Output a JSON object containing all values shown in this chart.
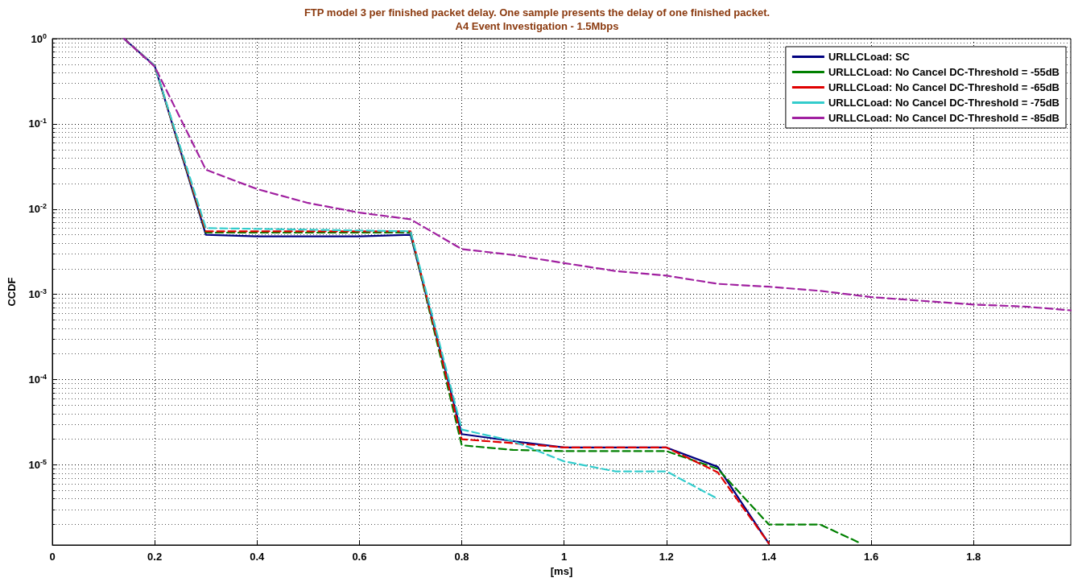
{
  "chart_data": {
    "type": "line",
    "title": "FTP model 3 per finished packet delay. One sample presents the delay of one finished packet.",
    "subtitle": "A4 Event Investigation - 1.5Mbps",
    "xlabel": "[ms]",
    "ylabel": "CCDF",
    "log": "y",
    "grid": true,
    "legend": "top right",
    "marker": "none",
    "xlim": [
      0,
      1.99
    ],
    "xticks": [
      0,
      0.2,
      0.4,
      0.6,
      0.8,
      1,
      1.2,
      1.4,
      1.6,
      1.8
    ],
    "ylim": [
      1.15e-06,
      1
    ],
    "yticks": [
      {
        "value": 1,
        "label": "10$^{0}$"
      },
      {
        "value": 0.1,
        "label": "10$^{-1}$"
      },
      {
        "value": 0.01,
        "label": "10$^{-2}$"
      },
      {
        "value": 0.001,
        "label": "10$^{-3}$"
      },
      {
        "value": 0.0001,
        "label": "10$^{-4}$"
      },
      {
        "value": 1e-05,
        "label": "10$^{-5}$"
      }
    ],
    "series": [
      {
        "name": "URLLCLoad: SC",
        "color": "#000080",
        "line_style": "solid",
        "x": [
          0.14,
          0.2,
          0.3,
          0.4,
          0.6,
          0.7,
          0.8,
          0.9,
          1.0,
          1.2,
          1.3,
          1.4
        ],
        "values": [
          1,
          0.48,
          0.005,
          0.0048,
          0.0048,
          0.005,
          2.3e-05,
          1.9e-05,
          1.6e-05,
          1.6e-05,
          9.5e-06,
          1.2e-06
        ]
      },
      {
        "name": "URLLCLoad: No Cancel DC-Threshold = -55dB",
        "color": "#008000",
        "line_style": "dashed",
        "x": [
          0.14,
          0.2,
          0.3,
          0.7,
          0.8,
          0.9,
          1.0,
          1.2,
          1.3,
          1.4,
          1.5,
          1.58
        ],
        "values": [
          1,
          0.48,
          0.0053,
          0.0053,
          1.7e-05,
          1.5e-05,
          1.45e-05,
          1.45e-05,
          9e-06,
          2e-06,
          2e-06,
          1.2e-06
        ]
      },
      {
        "name": "URLLCLoad: No Cancel DC-Threshold = -65dB",
        "color": "#e00000",
        "line_style": "dashed",
        "x": [
          0.14,
          0.2,
          0.3,
          0.7,
          0.8,
          0.9,
          1.0,
          1.2,
          1.3,
          1.4
        ],
        "values": [
          1,
          0.48,
          0.0055,
          0.0055,
          2e-05,
          1.8e-05,
          1.6e-05,
          1.6e-05,
          8.2e-06,
          1.2e-06
        ]
      },
      {
        "name": "URLLCLoad: No Cancel DC-Threshold = -75dB",
        "color": "#33cccc",
        "line_style": "dashed",
        "x": [
          0.14,
          0.2,
          0.3,
          0.7,
          0.8,
          0.9,
          1.0,
          1.1,
          1.2,
          1.3
        ],
        "values": [
          1,
          0.48,
          0.006,
          0.0055,
          2.6e-05,
          1.9e-05,
          1.1e-05,
          8.4e-06,
          8.4e-06,
          4e-06
        ]
      },
      {
        "name": "URLLCLoad: No Cancel DC-Threshold = -85dB",
        "color": "#a020a0",
        "line_style": "dashed",
        "x": [
          0.14,
          0.2,
          0.3,
          0.4,
          0.5,
          0.6,
          0.7,
          0.8,
          0.9,
          1.0,
          1.1,
          1.2,
          1.3,
          1.4,
          1.5,
          1.6,
          1.7,
          1.8,
          1.9,
          1.99
        ],
        "values": [
          1,
          0.47,
          0.029,
          0.0172,
          0.0118,
          0.0091,
          0.0076,
          0.0034,
          0.0029,
          0.00233,
          0.00188,
          0.00166,
          0.00133,
          0.00123,
          0.0011,
          0.00093,
          0.00084,
          0.00076,
          0.00072,
          0.00065
        ]
      }
    ]
  }
}
